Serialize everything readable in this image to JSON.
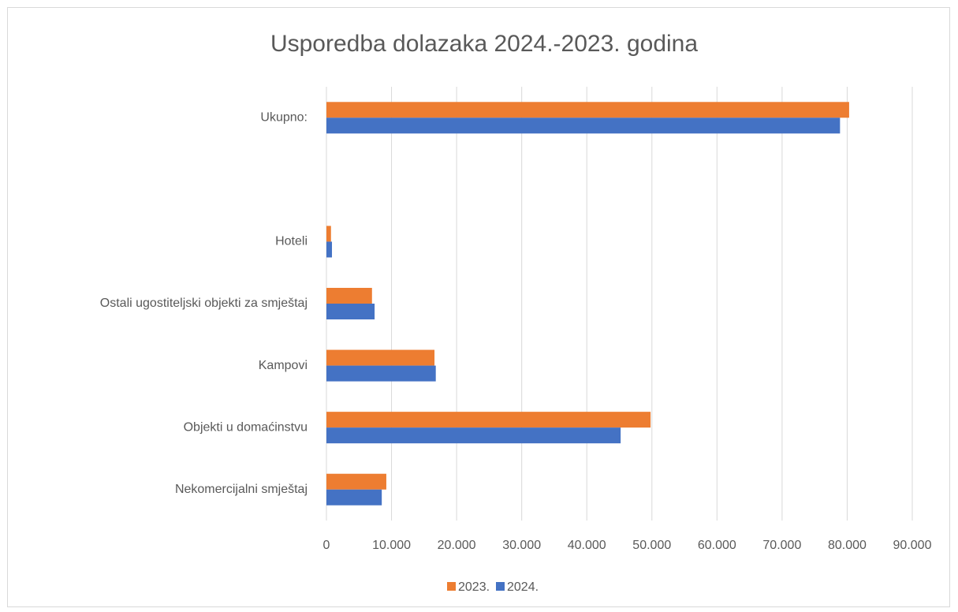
{
  "chart_data": {
    "type": "hbar",
    "title": "Usporedba dolazaka 2024.-2023. godina",
    "categories": [
      "Ukupno:",
      null,
      "Hoteli",
      "Ostali ugostiteljski objekti za smještaj",
      "Kampovi",
      "Objekti u domaćinstvu",
      "Nekomercijalni smještaj"
    ],
    "series": [
      {
        "name": "2023.",
        "color": "#ed7d31",
        "values": [
          80300,
          null,
          700,
          7000,
          16600,
          49800,
          9200
        ]
      },
      {
        "name": "2024.",
        "color": "#4472c4",
        "values": [
          78900,
          null,
          850,
          7400,
          16800,
          45200,
          8500
        ]
      }
    ],
    "xlim": [
      0,
      90000
    ],
    "xticks": [
      0,
      {
        "value": 10000,
        "label": "10.000"
      },
      {
        "value": 20000,
        "label": "20.000"
      },
      {
        "value": 30000,
        "label": "30.000"
      },
      {
        "value": 40000,
        "label": "40.000"
      },
      {
        "value": 50000,
        "label": "50.000"
      },
      {
        "value": 60000,
        "label": "60.000"
      },
      {
        "value": 70000,
        "label": "70.000"
      },
      {
        "value": 80000,
        "label": "80.000"
      },
      {
        "value": 90000,
        "label": "90.000"
      }
    ],
    "grid": true,
    "legend": "bottom"
  }
}
